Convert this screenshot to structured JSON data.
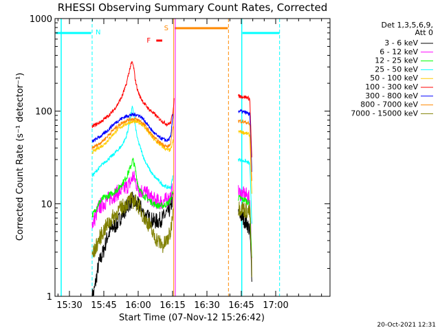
{
  "chart_data": {
    "type": "line",
    "title": "RHESSI Observing Summary Count Rates, Corrected",
    "xlabel": "Start Time (07-Nov-12 15:26:42)",
    "ylabel": "Corrected Count Rate (s⁻¹ detector⁻¹)",
    "x_range_min": [
      -3,
      117
    ],
    "y_range": [
      1,
      1000
    ],
    "y_scale": "log",
    "x_ticks": [
      {
        "min": 3.3,
        "label": "15:30"
      },
      {
        "min": 18.3,
        "label": "15:45"
      },
      {
        "min": 33.3,
        "label": "16:00"
      },
      {
        "min": 48.3,
        "label": "16:15"
      },
      {
        "min": 63.3,
        "label": "16:30"
      },
      {
        "min": 78.3,
        "label": "16:45"
      },
      {
        "min": 93.3,
        "label": "17:00"
      }
    ],
    "y_ticks": [
      {
        "v": 1,
        "label": "1"
      },
      {
        "v": 10,
        "label": "10"
      },
      {
        "v": 100,
        "label": "100"
      },
      {
        "v": 1000,
        "label": "1000"
      }
    ],
    "legend_header": [
      "Det 1,3,5,6,9,",
      "Att 0"
    ],
    "legend_position": "right, outside plot",
    "series": [
      {
        "name": "3 - 6 keV",
        "color": "#000000",
        "seg1": [
          [
            13.2,
            1.0
          ],
          [
            14,
            1.1
          ],
          [
            16,
            2.2
          ],
          [
            18,
            3.0
          ],
          [
            20,
            4.5
          ],
          [
            22,
            5.5
          ],
          [
            24,
            6.0
          ],
          [
            26,
            7.5
          ],
          [
            28,
            9.0
          ],
          [
            30,
            10.5
          ],
          [
            31,
            11.0
          ],
          [
            32,
            10.0
          ],
          [
            34,
            9.5
          ],
          [
            36,
            7.5
          ],
          [
            38,
            7.0
          ],
          [
            40,
            6.5
          ],
          [
            42,
            6.5
          ],
          [
            44,
            7.0
          ],
          [
            46,
            8.0
          ],
          [
            47.5,
            9.0
          ],
          [
            48.5,
            12.0
          ]
        ],
        "seg2": [
          [
            77,
            8.0
          ],
          [
            78,
            7.5
          ],
          [
            79,
            7.0
          ],
          [
            80,
            6.5
          ],
          [
            81,
            6.0
          ],
          [
            82,
            5.0
          ],
          [
            83,
            1.5
          ]
        ]
      },
      {
        "name": "6 - 12 keV",
        "color": "#ff00ff",
        "seg1": [
          [
            13.2,
            6.0
          ],
          [
            14,
            6.5
          ],
          [
            16,
            9.0
          ],
          [
            18,
            10.0
          ],
          [
            20,
            11.0
          ],
          [
            22,
            12.0
          ],
          [
            24,
            13.0
          ],
          [
            26,
            14.0
          ],
          [
            28,
            15.0
          ],
          [
            30,
            17.0
          ],
          [
            31,
            20.0
          ],
          [
            32,
            18.0
          ],
          [
            33,
            15.0
          ],
          [
            34,
            14.0
          ],
          [
            36,
            13.5
          ],
          [
            38,
            12.0
          ],
          [
            40,
            11.0
          ],
          [
            42,
            10.5
          ],
          [
            44,
            10.5
          ],
          [
            46,
            11.0
          ],
          [
            47.5,
            12.0
          ],
          [
            48.5,
            15.0
          ]
        ],
        "seg2": [
          [
            77,
            13.0
          ],
          [
            78,
            13.0
          ],
          [
            79,
            12.5
          ],
          [
            80,
            12.5
          ],
          [
            81,
            12.0
          ],
          [
            82,
            11.0
          ],
          [
            83,
            2.0
          ]
        ]
      },
      {
        "name": "12 - 25 keV",
        "color": "#00ff00",
        "seg1": [
          [
            13.2,
            7.5
          ],
          [
            14,
            8.0
          ],
          [
            16,
            10.0
          ],
          [
            18,
            11.5
          ],
          [
            20,
            12.0
          ],
          [
            22,
            13.0
          ],
          [
            24,
            14.0
          ],
          [
            26,
            16.0
          ],
          [
            28,
            19.0
          ],
          [
            30,
            25.0
          ],
          [
            31,
            30.0
          ],
          [
            32,
            24.0
          ],
          [
            33,
            17.0
          ],
          [
            34,
            14.0
          ],
          [
            36,
            12.0
          ],
          [
            38,
            11.0
          ],
          [
            40,
            10.0
          ],
          [
            42,
            9.5
          ],
          [
            44,
            9.5
          ],
          [
            46,
            10.0
          ],
          [
            47.5,
            11.0
          ],
          [
            48.5,
            14.0
          ]
        ],
        "seg2": [
          [
            77,
            11.5
          ],
          [
            78,
            11.5
          ],
          [
            79,
            11.0
          ],
          [
            80,
            11.0
          ],
          [
            81,
            10.5
          ],
          [
            82,
            10.0
          ],
          [
            83,
            2.0
          ]
        ]
      },
      {
        "name": "25 - 50 keV",
        "color": "#00ffff",
        "seg1": [
          [
            13.2,
            20.0
          ],
          [
            14,
            21.0
          ],
          [
            16,
            24.0
          ],
          [
            18,
            27.0
          ],
          [
            20,
            30.0
          ],
          [
            22,
            33.0
          ],
          [
            24,
            37.0
          ],
          [
            26,
            42.0
          ],
          [
            28,
            52.0
          ],
          [
            29,
            65.0
          ],
          [
            30,
            90.0
          ],
          [
            30.7,
            110.0
          ],
          [
            31.4,
            95.0
          ],
          [
            32,
            70.0
          ],
          [
            33,
            50.0
          ],
          [
            34,
            42.0
          ],
          [
            36,
            30.0
          ],
          [
            38,
            24.0
          ],
          [
            40,
            20.0
          ],
          [
            42,
            18.0
          ],
          [
            44,
            16.0
          ],
          [
            46,
            15.0
          ],
          [
            47.5,
            15.0
          ],
          [
            48.5,
            20.0
          ]
        ],
        "seg2": [
          [
            77,
            30.0
          ],
          [
            78,
            30.0
          ],
          [
            79,
            29.0
          ],
          [
            80,
            29.0
          ],
          [
            81,
            28.0
          ],
          [
            82,
            27.0
          ],
          [
            83,
            5.0
          ]
        ]
      },
      {
        "name": "50 - 100 keV",
        "color": "#ffcc00",
        "seg1": [
          [
            13.2,
            36.0
          ],
          [
            14,
            37.0
          ],
          [
            16,
            40.0
          ],
          [
            18,
            43.0
          ],
          [
            20,
            48.0
          ],
          [
            22,
            55.0
          ],
          [
            24,
            62.0
          ],
          [
            26,
            68.0
          ],
          [
            28,
            73.0
          ],
          [
            30,
            76.0
          ],
          [
            32,
            77.0
          ],
          [
            34,
            75.0
          ],
          [
            36,
            68.0
          ],
          [
            38,
            58.0
          ],
          [
            40,
            50.0
          ],
          [
            42,
            45.0
          ],
          [
            44,
            41.0
          ],
          [
            46,
            38.0
          ],
          [
            47.5,
            38.0
          ],
          [
            48.5,
            48.0
          ]
        ],
        "seg2": [
          [
            77,
            60.0
          ],
          [
            78,
            60.0
          ],
          [
            79,
            59.0
          ],
          [
            80,
            58.0
          ],
          [
            81,
            57.0
          ],
          [
            82,
            55.0
          ],
          [
            83,
            10.0
          ]
        ]
      },
      {
        "name": "100 - 300 keV",
        "color": "#ff0000",
        "seg1": [
          [
            13.2,
            68.0
          ],
          [
            14,
            70.0
          ],
          [
            16,
            74.0
          ],
          [
            18,
            80.0
          ],
          [
            20,
            88.0
          ],
          [
            22,
            98.0
          ],
          [
            24,
            115.0
          ],
          [
            26,
            140.0
          ],
          [
            28,
            190.0
          ],
          [
            29,
            245.0
          ],
          [
            30,
            310.0
          ],
          [
            30.7,
            340.0
          ],
          [
            31.4,
            290.0
          ],
          [
            32,
            220.0
          ],
          [
            33,
            170.0
          ],
          [
            34,
            145.0
          ],
          [
            36,
            120.0
          ],
          [
            38,
            105.0
          ],
          [
            40,
            95.0
          ],
          [
            42,
            85.0
          ],
          [
            44,
            77.0
          ],
          [
            46,
            72.0
          ],
          [
            47.5,
            75.0
          ],
          [
            48.5,
            100.0
          ],
          [
            49,
            140.0
          ]
        ],
        "seg2": [
          [
            77,
            145.0
          ],
          [
            78,
            145.0
          ],
          [
            79,
            143.0
          ],
          [
            80,
            142.0
          ],
          [
            81,
            140.0
          ],
          [
            82,
            135.0
          ],
          [
            83,
            25.0
          ]
        ]
      },
      {
        "name": "300 - 800 keV",
        "color": "#0000ff",
        "seg1": [
          [
            13.2,
            47.0
          ],
          [
            14,
            48.0
          ],
          [
            16,
            52.0
          ],
          [
            18,
            56.0
          ],
          [
            20,
            62.0
          ],
          [
            22,
            70.0
          ],
          [
            24,
            77.0
          ],
          [
            26,
            83.0
          ],
          [
            28,
            88.0
          ],
          [
            30,
            91.0
          ],
          [
            32,
            92.0
          ],
          [
            34,
            89.0
          ],
          [
            36,
            80.0
          ],
          [
            38,
            68.0
          ],
          [
            40,
            59.0
          ],
          [
            42,
            53.0
          ],
          [
            44,
            50.0
          ],
          [
            46,
            48.0
          ],
          [
            47.5,
            52.0
          ],
          [
            48.5,
            95.0
          ]
        ],
        "seg2": [
          [
            77,
            100.0
          ],
          [
            78,
            100.0
          ],
          [
            79,
            98.0
          ],
          [
            80,
            97.0
          ],
          [
            81,
            95.0
          ],
          [
            82,
            92.0
          ],
          [
            83,
            18.0
          ]
        ]
      },
      {
        "name": "800 - 7000 keV",
        "color": "#ff8800",
        "seg1": [
          [
            13.2,
            40.0
          ],
          [
            14,
            41.0
          ],
          [
            16,
            44.0
          ],
          [
            18,
            48.0
          ],
          [
            20,
            54.0
          ],
          [
            22,
            61.0
          ],
          [
            24,
            68.0
          ],
          [
            26,
            74.0
          ],
          [
            28,
            79.0
          ],
          [
            30,
            82.0
          ],
          [
            32,
            82.0
          ],
          [
            34,
            79.0
          ],
          [
            36,
            71.0
          ],
          [
            38,
            61.0
          ],
          [
            40,
            53.0
          ],
          [
            42,
            47.0
          ],
          [
            44,
            44.0
          ],
          [
            46,
            41.0
          ],
          [
            47.5,
            44.0
          ],
          [
            48.5,
            72.0
          ]
        ],
        "seg2": [
          [
            77,
            78.0
          ],
          [
            78,
            78.0
          ],
          [
            79,
            77.0
          ],
          [
            80,
            76.0
          ],
          [
            81,
            75.0
          ],
          [
            82,
            72.0
          ],
          [
            83,
            14.0
          ]
        ]
      },
      {
        "name": "7000 - 15000 keV",
        "color": "#808000",
        "seg1": [
          [
            13.2,
            2.8
          ],
          [
            14,
            3.0
          ],
          [
            16,
            4.0
          ],
          [
            18,
            5.0
          ],
          [
            20,
            6.0
          ],
          [
            22,
            7.0
          ],
          [
            24,
            8.0
          ],
          [
            26,
            9.0
          ],
          [
            28,
            10.0
          ],
          [
            30,
            11.0
          ],
          [
            32,
            10.5
          ],
          [
            34,
            9.0
          ],
          [
            36,
            7.0
          ],
          [
            38,
            6.0
          ],
          [
            40,
            4.5
          ],
          [
            42,
            4.0
          ],
          [
            44,
            3.5
          ],
          [
            46,
            4.0
          ],
          [
            47.5,
            5.0
          ],
          [
            48.5,
            9.0
          ]
        ],
        "seg2": [
          [
            77,
            9.0
          ],
          [
            78,
            9.0
          ],
          [
            79,
            9.0
          ],
          [
            80,
            8.5
          ],
          [
            81,
            8.5
          ],
          [
            82,
            8.0
          ],
          [
            83,
            1.5
          ]
        ]
      }
    ],
    "annotations": [
      {
        "label": "N",
        "color": "#00ffff"
      },
      {
        "label": "S",
        "color": "#ff8800"
      },
      {
        "label": "F",
        "color": "#ff0000"
      }
    ],
    "timestamp": "20-Oct-2021 12:31"
  }
}
